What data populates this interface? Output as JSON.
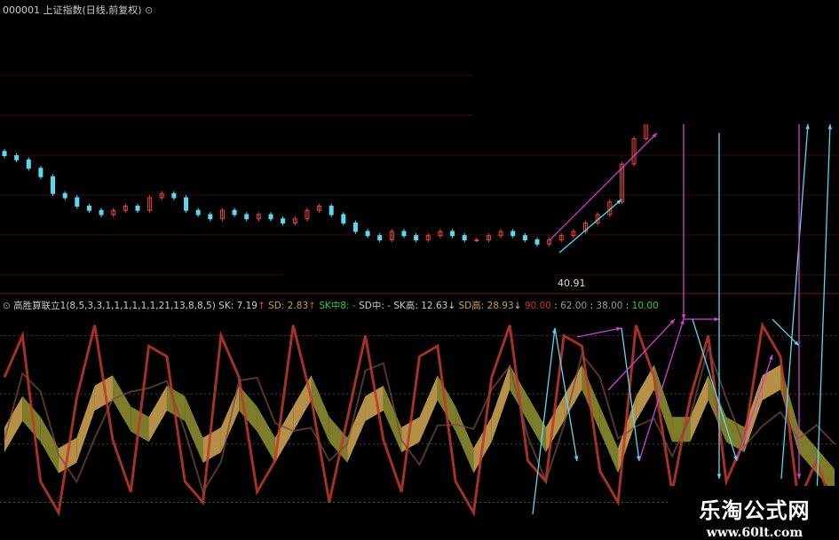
{
  "header": {
    "code": "000001",
    "title": "上证指数(日线,前复权)"
  },
  "indicator": {
    "name": "高胜算联立1(8,5,3,3,1,1,1,1,1,1,21,13,8,8,5)",
    "sk": "SK: 7.19",
    "sd": "SD: 2.83",
    "sk_mid": "SK中8: -",
    "sd_mid": "SD中: -",
    "sk_high": "SK高: 12.63",
    "sd_high": "SD高: 28.93",
    "levels": [
      "90.00",
      "62.00",
      "38.00",
      "10.00"
    ]
  },
  "low_label": "40.91",
  "watermark": {
    "name": "乐淘公式网",
    "url": "www.60lt.com"
  },
  "colors": {
    "up": "#e0443a",
    "down": "#5ad8f0",
    "sk": "#c0392b",
    "sd_fill": "#c8a050",
    "arrow_cyan": "#5ad8f0",
    "arrow_magenta": "#d040d0",
    "level90": "#e0443a",
    "level10": "#2ecc40"
  },
  "chart_data": [
    {
      "type": "candlestick",
      "name": "上证指数",
      "closes": [
        62,
        61,
        59,
        57,
        53,
        52,
        50,
        49,
        48,
        49,
        50,
        49,
        52,
        53,
        52,
        49,
        48,
        47,
        49,
        48,
        47,
        48,
        47,
        46,
        47,
        49,
        50,
        48,
        46,
        44,
        43,
        42,
        44,
        43,
        42,
        43,
        44,
        43,
        42,
        42,
        43,
        44,
        43,
        42,
        41,
        42,
        43,
        44,
        46,
        48,
        51,
        60,
        66,
        70,
        74,
        80
      ],
      "low_label": "40.91"
    },
    {
      "type": "line",
      "name": "oscillator",
      "ylim": [
        0,
        100
      ],
      "levels": [
        90,
        62,
        38,
        10
      ],
      "sk": [
        70,
        90,
        20,
        5,
        60,
        95,
        40,
        15,
        85,
        80,
        20,
        10,
        90,
        70,
        15,
        30,
        95,
        60,
        10,
        50,
        90,
        40,
        15,
        80,
        85,
        20,
        5,
        70,
        95,
        30,
        20,
        90,
        85,
        25,
        10,
        95,
        70,
        15,
        60,
        90,
        20,
        40,
        95,
        80,
        10,
        30,
        5
      ],
      "sd": [
        40,
        55,
        45,
        30,
        35,
        60,
        65,
        50,
        45,
        60,
        55,
        35,
        40,
        60,
        50,
        35,
        50,
        65,
        45,
        35,
        55,
        60,
        40,
        45,
        65,
        50,
        30,
        45,
        70,
        55,
        40,
        55,
        70,
        50,
        30,
        55,
        70,
        45,
        45,
        65,
        45,
        40,
        65,
        70,
        40,
        30,
        20
      ]
    }
  ]
}
